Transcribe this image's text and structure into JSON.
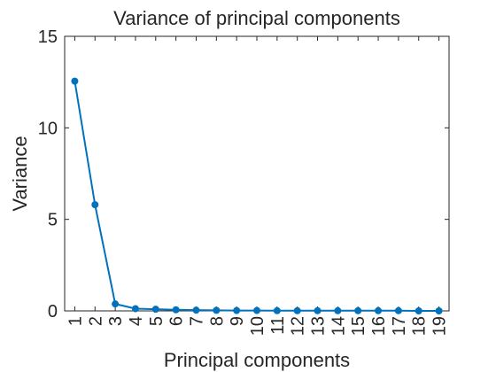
{
  "chart_data": {
    "type": "line",
    "title": "Variance of principal components",
    "xlabel": "Principal components",
    "ylabel": "Variance",
    "x": [
      1,
      2,
      3,
      4,
      5,
      6,
      7,
      8,
      9,
      10,
      11,
      12,
      13,
      14,
      15,
      16,
      17,
      18,
      19
    ],
    "x_tick_labels": [
      "1",
      "2",
      "3",
      "4",
      "5",
      "6",
      "7",
      "8",
      "9",
      "10",
      "11",
      "12",
      "13",
      "14",
      "15",
      "16",
      "17",
      "18",
      "19"
    ],
    "xlim": [
      0.5,
      19.5
    ],
    "ylim": [
      0,
      15
    ],
    "y_ticks": [
      0,
      5,
      10,
      15
    ],
    "y_tick_labels": [
      "0",
      "5",
      "10",
      "15"
    ],
    "grid": false,
    "series": [
      {
        "values": [
          12.55,
          5.8,
          0.38,
          0.12,
          0.09,
          0.06,
          0.04,
          0.03,
          0.02,
          0.02,
          0.01,
          0.01,
          0.01,
          0.01,
          0.01,
          0.01,
          0.01,
          0.0,
          0.0
        ],
        "color": "#0072BD",
        "marker": "circle"
      }
    ]
  }
}
